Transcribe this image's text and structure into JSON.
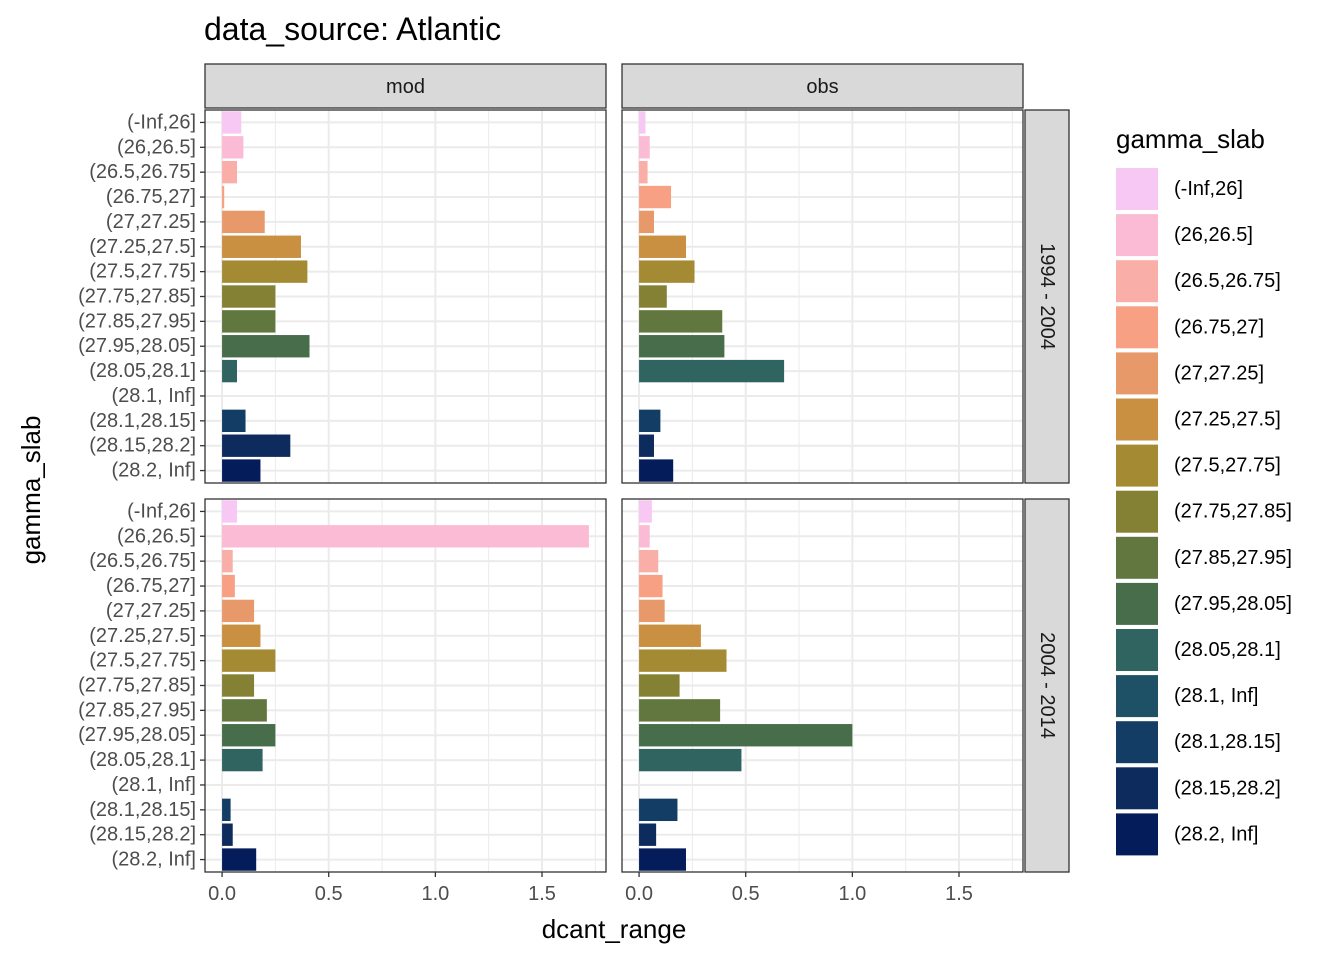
{
  "chart_data": {
    "type": "bar",
    "orientation": "horizontal",
    "title": "data_source: Atlantic",
    "xlabel": "dcant_range",
    "ylabel": "gamma_slab",
    "xlim": [
      -0.08,
      1.8
    ],
    "x_ticks": [
      0.0,
      0.5,
      1.0,
      1.5
    ],
    "x_tick_labels": [
      "0.0",
      "0.5",
      "1.0",
      "1.5"
    ],
    "grid": true,
    "categories": [
      "(-Inf,26]",
      "(26,26.5]",
      "(26.5,26.75]",
      "(26.75,27]",
      "(27,27.25]",
      "(27.25,27.5]",
      "(27.5,27.75]",
      "(27.75,27.85]",
      "(27.85,27.95]",
      "(27.95,28.05]",
      "(28.05,28.1]",
      "(28.1, Inf]",
      "(28.1,28.15]",
      "(28.15,28.2]",
      "(28.2, Inf]"
    ],
    "colors": [
      "#F7C8F4",
      "#FCBBD4",
      "#F9AFA8",
      "#F7A084",
      "#E8996A",
      "#C99042",
      "#A58A34",
      "#848034",
      "#62763F",
      "#486D4A",
      "#2F6460",
      "#1E5066",
      "#133D64",
      "#0E2B5E",
      "#041C5A"
    ],
    "col_facets": [
      "mod",
      "obs"
    ],
    "row_facets": [
      "1994 - 2004",
      "2004 - 2014"
    ],
    "legend_title": "gamma_slab",
    "legend_position": "right",
    "panels": [
      {
        "col": "mod",
        "row": "1994 - 2004",
        "values": [
          0.09,
          0.1,
          0.07,
          0.01,
          0.2,
          0.37,
          0.4,
          0.25,
          0.25,
          0.41,
          0.07,
          null,
          0.11,
          0.32,
          0.18
        ]
      },
      {
        "col": "obs",
        "row": "1994 - 2004",
        "values": [
          0.03,
          0.05,
          0.04,
          0.15,
          0.07,
          0.22,
          0.26,
          0.13,
          0.39,
          0.4,
          0.68,
          null,
          0.1,
          0.07,
          0.16
        ]
      },
      {
        "col": "mod",
        "row": "2004 - 2014",
        "values": [
          0.07,
          1.72,
          0.05,
          0.06,
          0.15,
          0.18,
          0.25,
          0.15,
          0.21,
          0.25,
          0.19,
          null,
          0.04,
          0.05,
          0.16
        ]
      },
      {
        "col": "obs",
        "row": "2004 - 2014",
        "values": [
          0.06,
          0.05,
          0.09,
          0.11,
          0.12,
          0.29,
          0.41,
          0.19,
          0.38,
          1.0,
          0.48,
          null,
          0.18,
          0.08,
          0.22
        ]
      }
    ]
  }
}
